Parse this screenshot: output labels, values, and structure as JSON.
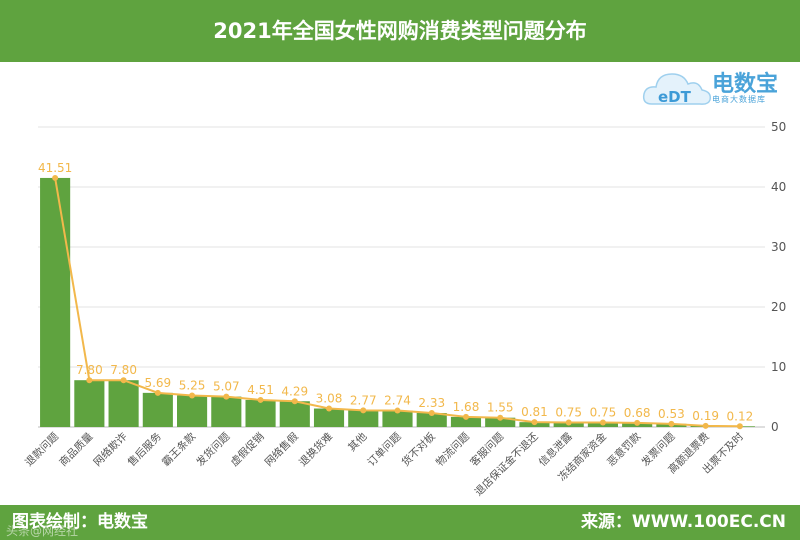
{
  "header": {
    "title": "2021年全国女性网购消费类型问题分布"
  },
  "logo": {
    "name": "电数宝",
    "subtitle": "电商大数据库",
    "mark": "eDT"
  },
  "footer": {
    "left": "图表绘制：电数宝",
    "right": "来源：WWW.100EC.CN",
    "watermark": "头条@网经社"
  },
  "colors": {
    "bar": "#5fa33f",
    "line": "#f2b84b",
    "header": "#5fa33f",
    "grid": "#e3e3e3"
  },
  "chart_data": {
    "type": "bar",
    "title": "2021年全国女性网购消费类型问题分布",
    "categories": [
      "退款问题",
      "商品质量",
      "网络欺诈",
      "售后服务",
      "霸王条款",
      "发货问题",
      "虚假促销",
      "网络售假",
      "退换货难",
      "其他",
      "订单问题",
      "货不对板",
      "物流问题",
      "客服问题",
      "退店保证金不退还",
      "信息泄露",
      "冻结商家资金",
      "恶意罚款",
      "发票问题",
      "高额退票费",
      "出票不及时"
    ],
    "values": [
      41.51,
      7.8,
      7.8,
      5.69,
      5.25,
      5.07,
      4.51,
      4.29,
      3.08,
      2.77,
      2.74,
      2.33,
      1.68,
      1.55,
      0.81,
      0.75,
      0.75,
      0.68,
      0.53,
      0.19,
      0.12
    ],
    "labels": [
      "41.51",
      "7.80",
      "7.80",
      "5.69",
      "5.25",
      "5.07",
      "4.51",
      "4.29",
      "3.08",
      "2.77",
      "2.74",
      "2.33",
      "1.68",
      "1.55",
      "0.81",
      "0.75",
      "0.75",
      "0.68",
      "0.53",
      "0.19",
      "0.12"
    ],
    "overlay_line": true,
    "ylim": [
      0,
      50
    ],
    "yticks": [
      "0",
      "10",
      "20",
      "30",
      "40",
      "50"
    ],
    "xlabel": "",
    "ylabel": "",
    "grid": true,
    "y_axis_side": "right"
  }
}
